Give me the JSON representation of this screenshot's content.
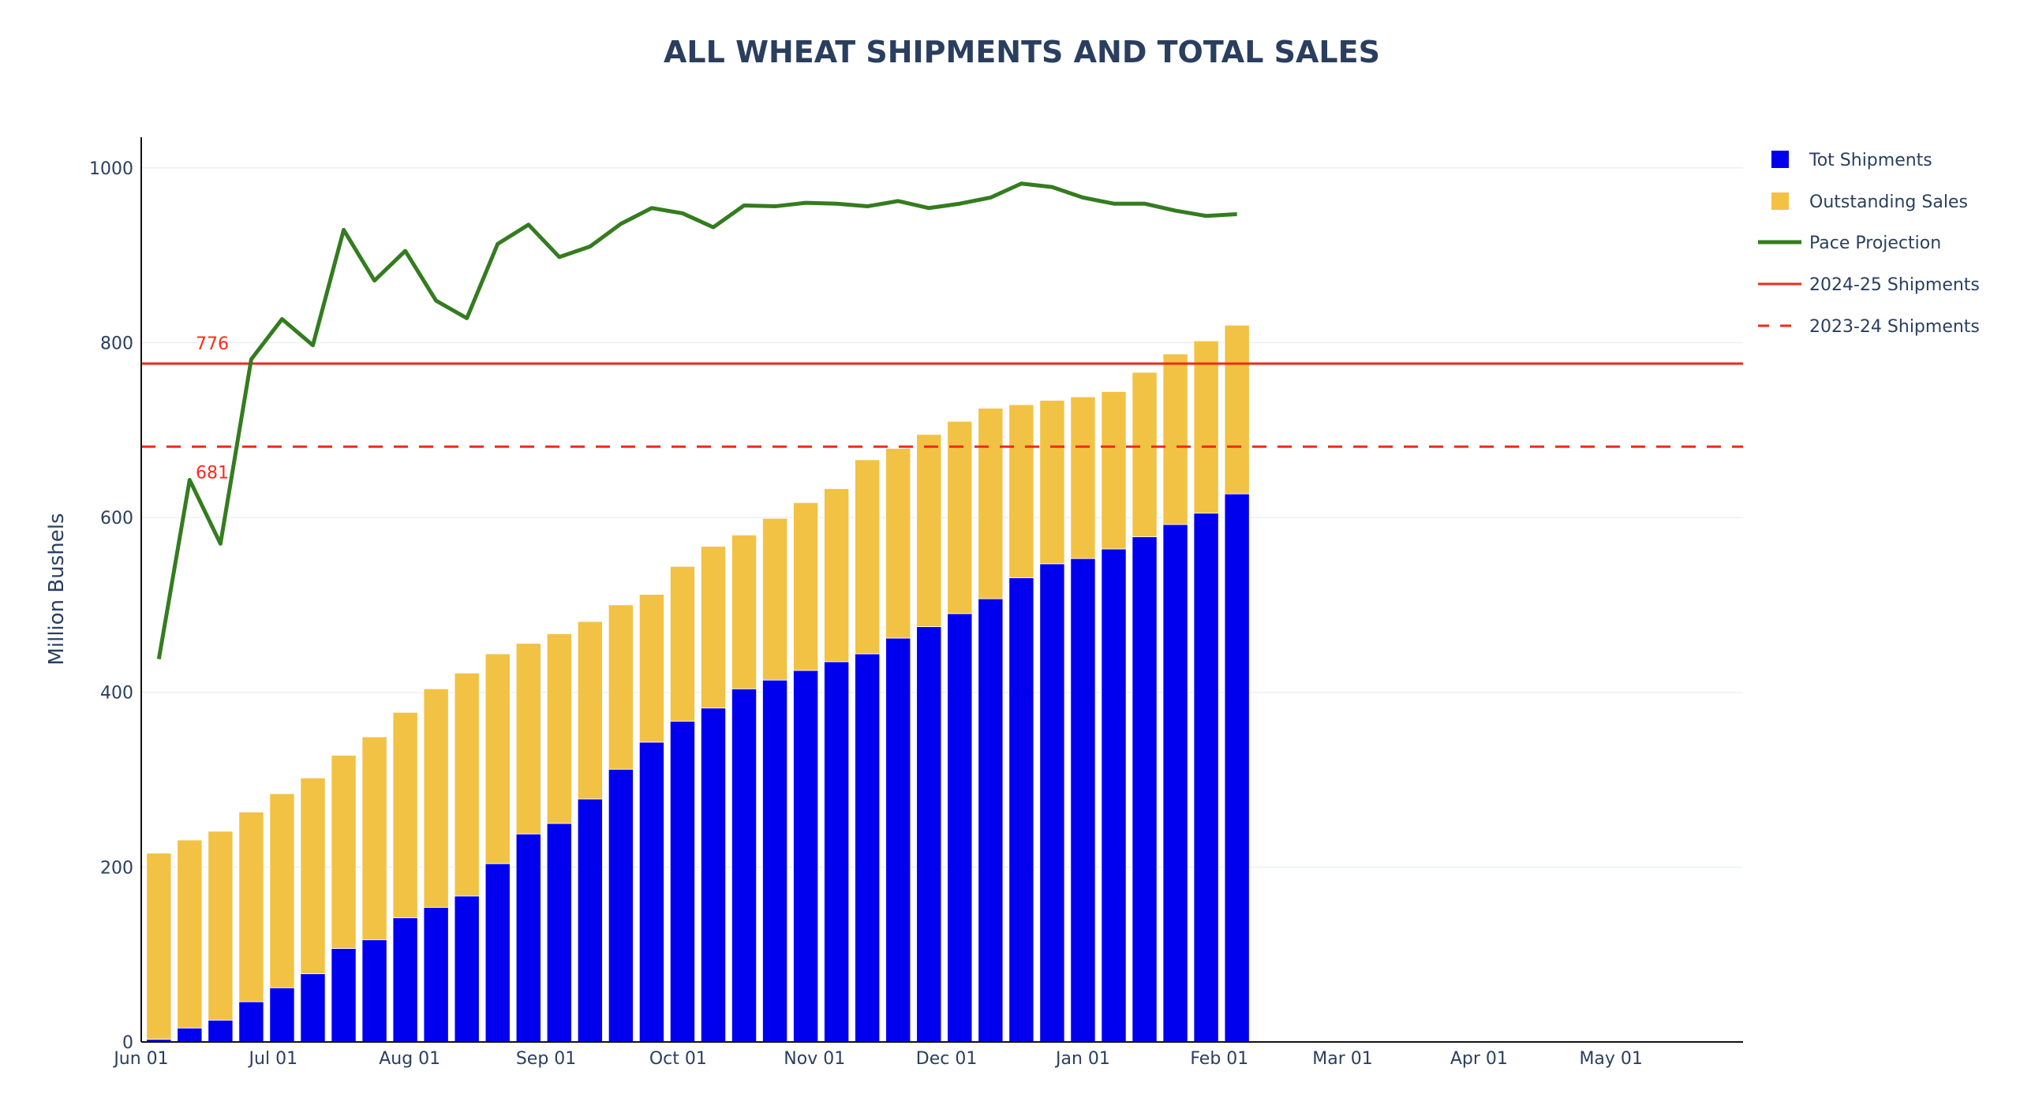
{
  "chart_data": {
    "type": "bar",
    "title": "ALL WHEAT SHIPMENTS AND TOTAL SALES",
    "xlabel": "",
    "ylabel": "Million Bushels",
    "ylim": [
      0,
      1035
    ],
    "y_ticks": [
      0,
      200,
      400,
      600,
      800,
      1000
    ],
    "x_range": [
      "2024-06-01",
      "2025-05-31"
    ],
    "x_ticks": [
      {
        "date": "2024-06-01",
        "label": "Jun 01"
      },
      {
        "date": "2024-07-01",
        "label": "Jul 01"
      },
      {
        "date": "2024-08-01",
        "label": "Aug 01"
      },
      {
        "date": "2024-09-01",
        "label": "Sep 01"
      },
      {
        "date": "2024-10-01",
        "label": "Oct 01"
      },
      {
        "date": "2024-11-01",
        "label": "Nov 01"
      },
      {
        "date": "2024-12-01",
        "label": "Dec 01"
      },
      {
        "date": "2025-01-01",
        "label": "Jan 01"
      },
      {
        "date": "2025-02-01",
        "label": "Feb 01"
      },
      {
        "date": "2025-03-01",
        "label": "Mar 01"
      },
      {
        "date": "2025-04-01",
        "label": "Apr 01"
      },
      {
        "date": "2025-05-01",
        "label": "May 01"
      }
    ],
    "grid": true,
    "legend_position": "right",
    "barmode": "stack",
    "first_week": "2024-06-05",
    "week_step_days": 7,
    "series": [
      {
        "name": "Tot Shipments",
        "type": "bar",
        "color": "#0000ee",
        "values": [
          3,
          16,
          25,
          46,
          62,
          78,
          107,
          117,
          142,
          154,
          167,
          204,
          238,
          250,
          278,
          312,
          343,
          367,
          382,
          404,
          414,
          425,
          435,
          444,
          462,
          475,
          490,
          507,
          531,
          547,
          553,
          564,
          578,
          592,
          605,
          627
        ]
      },
      {
        "name": "Outstanding Sales",
        "type": "bar",
        "color": "#f2c244",
        "values": [
          213,
          215,
          216,
          217,
          222,
          224,
          221,
          232,
          235,
          250,
          255,
          240,
          218,
          217,
          203,
          188,
          169,
          177,
          185,
          176,
          185,
          192,
          198,
          222,
          217,
          220,
          220,
          218,
          198,
          187,
          185,
          180,
          188,
          195,
          197,
          193
        ]
      },
      {
        "name": "Pace Projection",
        "type": "line",
        "color": "#347c1f",
        "values": [
          438,
          643,
          570,
          781,
          827,
          797,
          929,
          871,
          905,
          848,
          828,
          913,
          935,
          898,
          910,
          936,
          954,
          948,
          932,
          957,
          956,
          960,
          959,
          956,
          962,
          954,
          959,
          966,
          982,
          978,
          966,
          959,
          959,
          951,
          945,
          947
        ]
      },
      {
        "name": "2024-25 Shipments",
        "type": "hline",
        "color": "#ee2a1a",
        "value": 776,
        "label": "776"
      },
      {
        "name": "2023-24 Shipments",
        "type": "hline-dash",
        "color": "#ee2a1a",
        "value": 681,
        "label": "681"
      }
    ]
  }
}
